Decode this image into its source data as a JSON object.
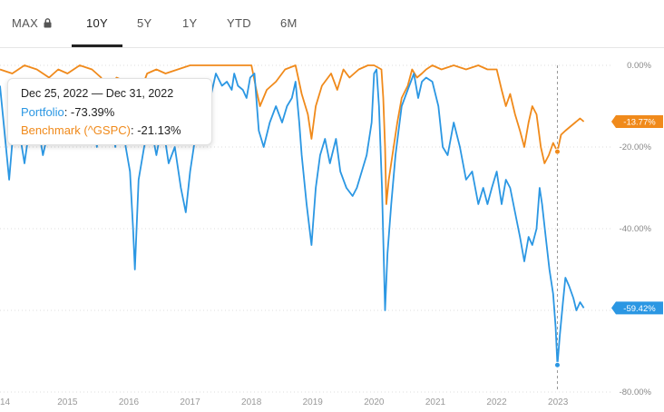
{
  "tabs": [
    {
      "label": "MAX",
      "locked": true
    },
    {
      "label": "10Y",
      "active": true
    },
    {
      "label": "5Y"
    },
    {
      "label": "1Y"
    },
    {
      "label": "YTD"
    },
    {
      "label": "6M"
    }
  ],
  "icons": {
    "lock": "lock-icon"
  },
  "tooltip": {
    "date": "Dec 25, 2022 — Dec 31, 2022",
    "portfolio_label": "Portfolio",
    "portfolio_value": ": -73.39%",
    "benchmark_label": "Benchmark (^GSPC)",
    "benchmark_value": ": -21.13%"
  },
  "chart_data": {
    "type": "line",
    "x_tick_labels": [
      "14",
      "2015",
      "2016",
      "2017",
      "2018",
      "2019",
      "2020",
      "2021",
      "2022",
      "2023"
    ],
    "y_tick_labels": [
      "0.00%",
      "-20.00%",
      "-40.00%",
      "-60.00%",
      "-80.00%"
    ],
    "ylim": [
      -80,
      0
    ],
    "xlim": [
      2013.9,
      2023.9
    ],
    "y_axis_position": "right",
    "grid": "horizontal dashed",
    "crosshair_x": 2022.99,
    "series": [
      {
        "name": "Portfolio",
        "color": "#2b97e3",
        "last_value_label": "-59.42%",
        "highlight": {
          "x": 2022.99,
          "y": -73.39
        },
        "points": [
          [
            2013.9,
            -5
          ],
          [
            2014.05,
            -28
          ],
          [
            2014.15,
            -10
          ],
          [
            2014.3,
            -24
          ],
          [
            2014.45,
            -8
          ],
          [
            2014.6,
            -22
          ],
          [
            2014.75,
            -12
          ],
          [
            2014.9,
            -4
          ],
          [
            2015.0,
            -10
          ],
          [
            2015.08,
            -18
          ],
          [
            2015.2,
            -6
          ],
          [
            2015.35,
            -4
          ],
          [
            2015.48,
            -20
          ],
          [
            2015.58,
            -7
          ],
          [
            2015.7,
            -11
          ],
          [
            2015.78,
            -20
          ],
          [
            2015.86,
            -8
          ],
          [
            2015.95,
            -20
          ],
          [
            2016.02,
            -26
          ],
          [
            2016.07,
            -40
          ],
          [
            2016.1,
            -50
          ],
          [
            2016.16,
            -28
          ],
          [
            2016.25,
            -20
          ],
          [
            2016.35,
            -14
          ],
          [
            2016.45,
            -22
          ],
          [
            2016.55,
            -14
          ],
          [
            2016.65,
            -24
          ],
          [
            2016.75,
            -20
          ],
          [
            2016.85,
            -30
          ],
          [
            2016.93,
            -36
          ],
          [
            2017.0,
            -26
          ],
          [
            2017.08,
            -18
          ],
          [
            2017.18,
            -6
          ],
          [
            2017.3,
            -10
          ],
          [
            2017.42,
            -2
          ],
          [
            2017.52,
            -5
          ],
          [
            2017.6,
            -4
          ],
          [
            2017.68,
            -6
          ],
          [
            2017.72,
            -2
          ],
          [
            2017.78,
            -5
          ],
          [
            2017.86,
            -6
          ],
          [
            2017.92,
            -8
          ],
          [
            2017.98,
            -3
          ],
          [
            2018.05,
            -2
          ],
          [
            2018.12,
            -16
          ],
          [
            2018.2,
            -20
          ],
          [
            2018.3,
            -14
          ],
          [
            2018.4,
            -10
          ],
          [
            2018.5,
            -14
          ],
          [
            2018.58,
            -10
          ],
          [
            2018.66,
            -8
          ],
          [
            2018.72,
            -4
          ],
          [
            2018.78,
            -14
          ],
          [
            2018.82,
            -22
          ],
          [
            2018.9,
            -34
          ],
          [
            2018.98,
            -44
          ],
          [
            2019.05,
            -30
          ],
          [
            2019.12,
            -22
          ],
          [
            2019.2,
            -18
          ],
          [
            2019.28,
            -24
          ],
          [
            2019.38,
            -18
          ],
          [
            2019.45,
            -26
          ],
          [
            2019.55,
            -30
          ],
          [
            2019.65,
            -32
          ],
          [
            2019.72,
            -30
          ],
          [
            2019.8,
            -26
          ],
          [
            2019.88,
            -22
          ],
          [
            2019.96,
            -14
          ],
          [
            2020.0,
            -2
          ],
          [
            2020.04,
            -1
          ],
          [
            2020.08,
            -10
          ],
          [
            2020.13,
            -30
          ],
          [
            2020.18,
            -60
          ],
          [
            2020.22,
            -46
          ],
          [
            2020.28,
            -34
          ],
          [
            2020.35,
            -22
          ],
          [
            2020.45,
            -10
          ],
          [
            2020.55,
            -6
          ],
          [
            2020.65,
            -2
          ],
          [
            2020.72,
            -8
          ],
          [
            2020.78,
            -4
          ],
          [
            2020.85,
            -3
          ],
          [
            2020.95,
            -4
          ],
          [
            2021.05,
            -10
          ],
          [
            2021.12,
            -20
          ],
          [
            2021.2,
            -22
          ],
          [
            2021.3,
            -14
          ],
          [
            2021.4,
            -20
          ],
          [
            2021.5,
            -28
          ],
          [
            2021.6,
            -26
          ],
          [
            2021.7,
            -34
          ],
          [
            2021.78,
            -30
          ],
          [
            2021.85,
            -34
          ],
          [
            2021.92,
            -30
          ],
          [
            2022.0,
            -26
          ],
          [
            2022.08,
            -34
          ],
          [
            2022.15,
            -28
          ],
          [
            2022.22,
            -30
          ],
          [
            2022.3,
            -36
          ],
          [
            2022.38,
            -42
          ],
          [
            2022.45,
            -48
          ],
          [
            2022.52,
            -42
          ],
          [
            2022.58,
            -44
          ],
          [
            2022.65,
            -40
          ],
          [
            2022.7,
            -30
          ],
          [
            2022.74,
            -34
          ],
          [
            2022.8,
            -42
          ],
          [
            2022.86,
            -50
          ],
          [
            2022.92,
            -56
          ],
          [
            2022.96,
            -64
          ],
          [
            2022.99,
            -73.39
          ],
          [
            2023.03,
            -66
          ],
          [
            2023.08,
            -58
          ],
          [
            2023.12,
            -52
          ],
          [
            2023.18,
            -54
          ],
          [
            2023.25,
            -57
          ],
          [
            2023.3,
            -60
          ],
          [
            2023.36,
            -58
          ],
          [
            2023.42,
            -59.42
          ]
        ]
      },
      {
        "name": "Benchmark (^GSPC)",
        "color": "#f08a1b",
        "last_value_label": "-13.77%",
        "highlight": {
          "x": 2022.99,
          "y": -21.13
        },
        "points": [
          [
            2013.9,
            -1
          ],
          [
            2014.1,
            -2
          ],
          [
            2014.3,
            0
          ],
          [
            2014.5,
            -1
          ],
          [
            2014.7,
            -3
          ],
          [
            2014.85,
            -1
          ],
          [
            2015.0,
            -2
          ],
          [
            2015.2,
            0
          ],
          [
            2015.4,
            -1
          ],
          [
            2015.55,
            -3
          ],
          [
            2015.62,
            -9
          ],
          [
            2015.7,
            -6
          ],
          [
            2015.8,
            -3
          ],
          [
            2015.95,
            -4
          ],
          [
            2016.05,
            -10
          ],
          [
            2016.12,
            -12
          ],
          [
            2016.2,
            -6
          ],
          [
            2016.3,
            -2
          ],
          [
            2016.45,
            -1
          ],
          [
            2016.6,
            -2
          ],
          [
            2016.8,
            -1
          ],
          [
            2017.0,
            0
          ],
          [
            2017.3,
            0
          ],
          [
            2017.6,
            0
          ],
          [
            2017.9,
            0
          ],
          [
            2018.0,
            0
          ],
          [
            2018.08,
            -6
          ],
          [
            2018.14,
            -10
          ],
          [
            2018.25,
            -6
          ],
          [
            2018.4,
            -4
          ],
          [
            2018.55,
            -1
          ],
          [
            2018.72,
            0
          ],
          [
            2018.82,
            -7
          ],
          [
            2018.92,
            -12
          ],
          [
            2018.98,
            -18
          ],
          [
            2019.05,
            -10
          ],
          [
            2019.15,
            -5
          ],
          [
            2019.3,
            -2
          ],
          [
            2019.4,
            -6
          ],
          [
            2019.5,
            -1
          ],
          [
            2019.6,
            -3
          ],
          [
            2019.75,
            -1
          ],
          [
            2019.9,
            0
          ],
          [
            2020.0,
            0
          ],
          [
            2020.12,
            -1
          ],
          [
            2020.15,
            -8
          ],
          [
            2020.18,
            -20
          ],
          [
            2020.2,
            -34
          ],
          [
            2020.24,
            -28
          ],
          [
            2020.3,
            -22
          ],
          [
            2020.38,
            -14
          ],
          [
            2020.45,
            -8
          ],
          [
            2020.55,
            -5
          ],
          [
            2020.62,
            -1
          ],
          [
            2020.7,
            -3
          ],
          [
            2020.78,
            -2
          ],
          [
            2020.85,
            -1
          ],
          [
            2020.95,
            0
          ],
          [
            2021.1,
            -1
          ],
          [
            2021.3,
            0
          ],
          [
            2021.5,
            -1
          ],
          [
            2021.7,
            0
          ],
          [
            2021.85,
            -1
          ],
          [
            2022.0,
            -1
          ],
          [
            2022.08,
            -6
          ],
          [
            2022.15,
            -10
          ],
          [
            2022.22,
            -7
          ],
          [
            2022.3,
            -12
          ],
          [
            2022.38,
            -16
          ],
          [
            2022.45,
            -20
          ],
          [
            2022.52,
            -14
          ],
          [
            2022.58,
            -10
          ],
          [
            2022.65,
            -12
          ],
          [
            2022.72,
            -20
          ],
          [
            2022.78,
            -24
          ],
          [
            2022.85,
            -22
          ],
          [
            2022.92,
            -19
          ],
          [
            2022.99,
            -21.13
          ],
          [
            2023.05,
            -17
          ],
          [
            2023.12,
            -16
          ],
          [
            2023.2,
            -15
          ],
          [
            2023.28,
            -14
          ],
          [
            2023.36,
            -13
          ],
          [
            2023.42,
            -13.77
          ]
        ]
      }
    ]
  }
}
